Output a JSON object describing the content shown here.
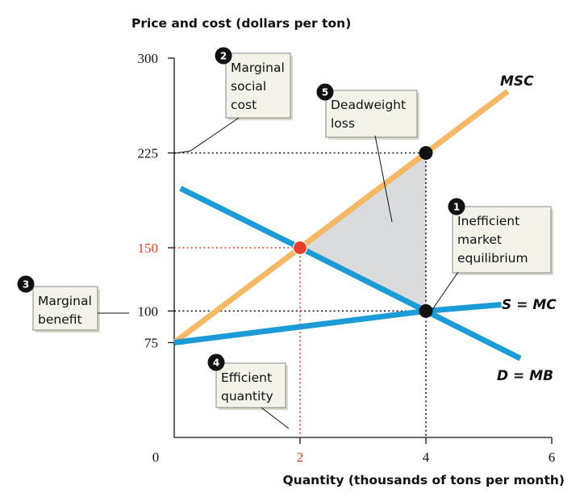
{
  "chart_data": {
    "type": "line",
    "ylabel": "Price and cost (dollars per ton)",
    "xlabel": "Quantity (thousands of tons per month)",
    "xlim": [
      0,
      6
    ],
    "ylim": [
      0,
      300
    ],
    "x_ticks": [
      0,
      2,
      4,
      6
    ],
    "y_ticks": [
      75,
      100,
      150,
      225,
      300
    ],
    "series": [
      {
        "name": "MSC",
        "color": "#f4b867",
        "x": [
          0,
          4,
          5.3
        ],
        "y": [
          75,
          225,
          273.75
        ]
      },
      {
        "name": "S = MC",
        "color": "#1c9bd6",
        "x": [
          0,
          4,
          5.2
        ],
        "y": [
          75,
          100,
          105
        ]
      },
      {
        "name": "D = MB",
        "color": "#1c9bd6",
        "x": [
          0.1,
          2,
          4,
          5.5
        ],
        "y": [
          197,
          150,
          100,
          62.5
        ]
      }
    ],
    "points": [
      {
        "x": 2,
        "y": 150,
        "color": "#e2402c",
        "kind": "efficient"
      },
      {
        "x": 4,
        "y": 225,
        "color": "#111111",
        "kind": "msc-at-market"
      },
      {
        "x": 4,
        "y": 100,
        "color": "#111111",
        "kind": "market-equilibrium"
      }
    ],
    "deadweight_loss": [
      [
        2,
        150
      ],
      [
        4,
        225
      ],
      [
        4,
        100
      ]
    ],
    "highlight_color": "#e2402c",
    "notes": [
      {
        "num": "1",
        "lines": [
          "Inefficient",
          "market",
          "equilibrium"
        ]
      },
      {
        "num": "2",
        "lines": [
          "Marginal",
          "social",
          "cost"
        ]
      },
      {
        "num": "3",
        "lines": [
          "Marginal",
          "benefit"
        ]
      },
      {
        "num": "4",
        "lines": [
          "Efficient",
          "quantity"
        ]
      },
      {
        "num": "5",
        "lines": [
          "Deadweight",
          "loss"
        ]
      }
    ]
  }
}
